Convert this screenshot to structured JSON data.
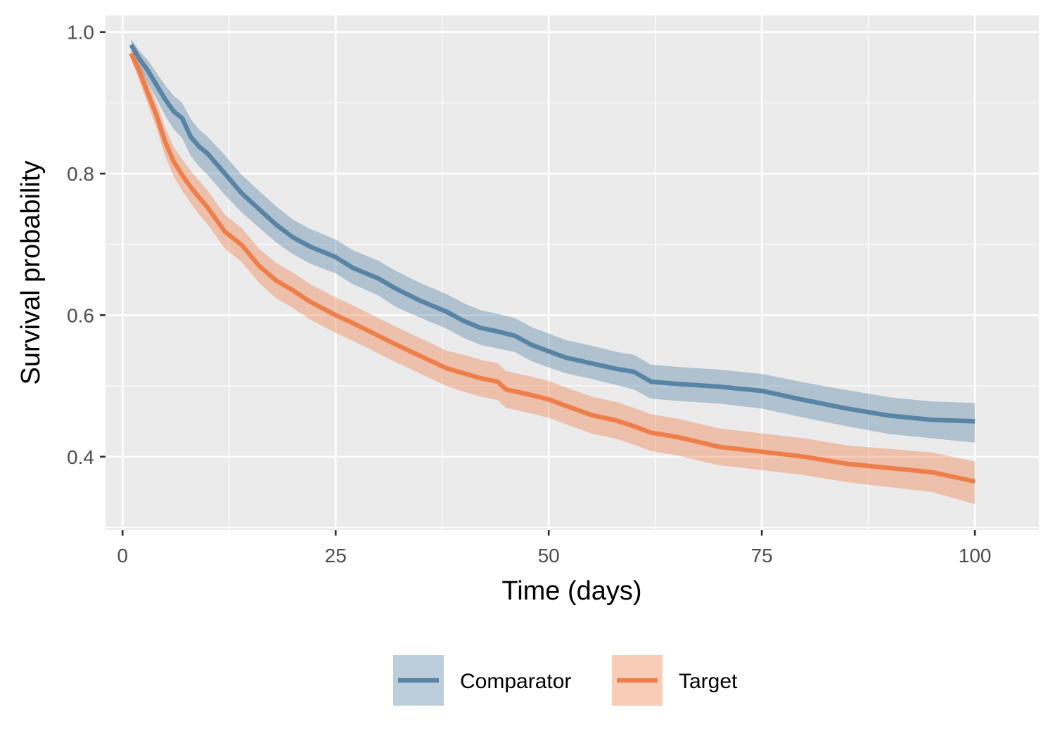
{
  "chart_data": {
    "type": "line",
    "title": "",
    "xlabel": "Time (days)",
    "ylabel": "Survival probability",
    "xlim": [
      -2,
      107.5
    ],
    "ylim": [
      0.2965,
      1.0235
    ],
    "x_ticks": [
      0,
      25,
      50,
      75,
      100
    ],
    "x_tick_labels": [
      "0",
      "25",
      "50",
      "75",
      "100"
    ],
    "y_ticks": [
      0.4,
      0.6,
      0.8,
      1.0
    ],
    "y_tick_labels": [
      "0.4",
      "0.6",
      "0.8",
      "1.0"
    ],
    "grid": true,
    "legend_position": "bottom",
    "panel_background": "#ebebeb",
    "series": [
      {
        "name": "Comparator",
        "color": "#5884a6",
        "ribbon_color": "#5884a6",
        "x": [
          1,
          2,
          3,
          4,
          5,
          6,
          7,
          8,
          9,
          10,
          12,
          14,
          16,
          18,
          20,
          22,
          25,
          27,
          30,
          32,
          35,
          38,
          40,
          42,
          44,
          46,
          48,
          50,
          52,
          55,
          58,
          60,
          62,
          65,
          70,
          75,
          80,
          85,
          90,
          95,
          100
        ],
        "y": [
          0.982,
          0.962,
          0.945,
          0.925,
          0.905,
          0.888,
          0.878,
          0.852,
          0.838,
          0.828,
          0.8,
          0.772,
          0.75,
          0.728,
          0.71,
          0.697,
          0.682,
          0.667,
          0.652,
          0.638,
          0.62,
          0.605,
          0.592,
          0.582,
          0.577,
          0.571,
          0.558,
          0.549,
          0.54,
          0.532,
          0.524,
          0.52,
          0.506,
          0.503,
          0.499,
          0.493,
          0.48,
          0.468,
          0.458,
          0.452,
          0.45
        ],
        "lower": [
          0.975,
          0.95,
          0.928,
          0.905,
          0.882,
          0.863,
          0.85,
          0.825,
          0.81,
          0.798,
          0.77,
          0.745,
          0.724,
          0.703,
          0.686,
          0.673,
          0.659,
          0.644,
          0.628,
          0.612,
          0.596,
          0.581,
          0.568,
          0.558,
          0.553,
          0.548,
          0.535,
          0.526,
          0.518,
          0.51,
          0.501,
          0.495,
          0.482,
          0.479,
          0.475,
          0.468,
          0.455,
          0.443,
          0.432,
          0.426,
          0.42
        ],
        "upper": [
          0.99,
          0.973,
          0.96,
          0.942,
          0.925,
          0.91,
          0.9,
          0.877,
          0.862,
          0.852,
          0.826,
          0.798,
          0.776,
          0.754,
          0.735,
          0.722,
          0.707,
          0.692,
          0.677,
          0.663,
          0.645,
          0.63,
          0.617,
          0.607,
          0.602,
          0.596,
          0.583,
          0.574,
          0.565,
          0.557,
          0.548,
          0.544,
          0.53,
          0.527,
          0.523,
          0.517,
          0.505,
          0.494,
          0.484,
          0.478,
          0.476
        ]
      },
      {
        "name": "Target",
        "color": "#ee7f4b",
        "ribbon_color": "#ee7f4b",
        "x": [
          1,
          2,
          3,
          4,
          5,
          6,
          7,
          8,
          9,
          10,
          12,
          14,
          16,
          18,
          20,
          22,
          25,
          27,
          30,
          32,
          35,
          38,
          40,
          42,
          44,
          45,
          48,
          50,
          52,
          55,
          58,
          60,
          62,
          65,
          70,
          75,
          80,
          85,
          90,
          95,
          100
        ],
        "y": [
          0.97,
          0.944,
          0.913,
          0.882,
          0.845,
          0.817,
          0.798,
          0.781,
          0.766,
          0.752,
          0.718,
          0.699,
          0.67,
          0.649,
          0.635,
          0.619,
          0.6,
          0.589,
          0.571,
          0.559,
          0.542,
          0.525,
          0.518,
          0.511,
          0.506,
          0.495,
          0.487,
          0.481,
          0.472,
          0.459,
          0.451,
          0.443,
          0.434,
          0.428,
          0.414,
          0.407,
          0.4,
          0.39,
          0.384,
          0.378,
          0.365
        ],
        "lower": [
          0.962,
          0.93,
          0.897,
          0.864,
          0.825,
          0.796,
          0.776,
          0.758,
          0.742,
          0.728,
          0.694,
          0.675,
          0.646,
          0.624,
          0.61,
          0.594,
          0.575,
          0.564,
          0.546,
          0.534,
          0.517,
          0.5,
          0.492,
          0.485,
          0.48,
          0.469,
          0.461,
          0.455,
          0.446,
          0.433,
          0.425,
          0.417,
          0.408,
          0.402,
          0.388,
          0.381,
          0.374,
          0.364,
          0.357,
          0.35,
          0.333
        ],
        "upper": [
          0.978,
          0.958,
          0.929,
          0.9,
          0.865,
          0.838,
          0.82,
          0.804,
          0.79,
          0.776,
          0.742,
          0.723,
          0.694,
          0.674,
          0.66,
          0.644,
          0.625,
          0.614,
          0.596,
          0.584,
          0.567,
          0.55,
          0.544,
          0.537,
          0.532,
          0.521,
          0.513,
          0.507,
          0.498,
          0.485,
          0.477,
          0.469,
          0.46,
          0.454,
          0.44,
          0.433,
          0.426,
          0.416,
          0.411,
          0.406,
          0.393
        ]
      }
    ]
  }
}
